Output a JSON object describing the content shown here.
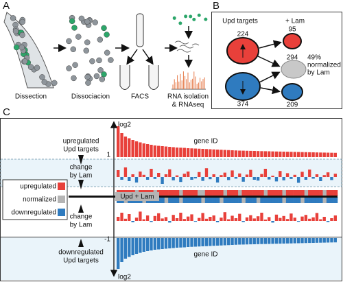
{
  "panel_a": {
    "label": "A",
    "steps": [
      "Dissection",
      "Dissociacion",
      "FACS",
      "RNA isolation"
    ],
    "step_note": "& RNAseq"
  },
  "panel_b": {
    "label": "B",
    "upd_targets": "Upd targets",
    "plus_lam": "+ Lam",
    "up_count": 224,
    "up_lam_count": 95,
    "normalized_count": 294,
    "normalized_percent": "49%",
    "normalized_note": [
      "normalized",
      "by Lam"
    ],
    "down_count": 374,
    "down_lam_count": 209
  },
  "panel_c": {
    "label": "C",
    "axis_label": "log2",
    "up_threshold": "1",
    "down_threshold": "-1",
    "gene_id": "gene ID",
    "up_label": [
      "upregulated",
      "Upd targets"
    ],
    "change_label": [
      "change",
      "by Lam"
    ],
    "down_label": [
      "downregulated",
      "Upd targets"
    ],
    "combined_label": "Upd + Lam",
    "legend": [
      {
        "name": "upregulated",
        "color": "#e8403a"
      },
      {
        "name": "normalized",
        "color": "#b4b4b4"
      },
      {
        "name": "downregulated",
        "color": "#2f7bbf"
      }
    ],
    "upregulated": [
      9,
      7,
      6,
      5.5,
      5,
      4.6,
      4.3,
      4,
      3.8,
      3.6,
      3.4,
      3.3,
      3.2,
      3.1,
      3,
      2.9,
      2.8,
      2.75,
      2.7,
      2.6,
      2.55,
      2.5,
      2.45,
      2.4,
      2.35,
      2.3,
      2.25,
      2.2,
      2.15,
      2.1,
      2.05,
      2,
      1.95,
      1.9,
      1.88,
      1.85,
      1.82,
      1.8,
      1.77,
      1.74,
      1.72,
      1.7,
      1.67,
      1.64,
      1.62,
      1.6,
      1.57,
      1.55,
      1.52,
      1.5,
      1.47,
      1.45,
      1.42,
      1.4,
      1.37,
      1.34,
      1.32,
      1.3,
      1.27,
      1.25
    ],
    "change_up": [
      2.5,
      -1,
      3.5,
      -1.5,
      1,
      -2,
      2,
      0.8,
      -1,
      3,
      -0.7,
      1.5,
      -2.5,
      1,
      2.8,
      -1.2,
      0.6,
      -1.8,
      1.2,
      2,
      -1,
      -0.5,
      1.8,
      -1.4,
      3.2,
      -0.8,
      1,
      -2,
      0.7,
      1.6,
      -1.1,
      2.4,
      -0.6,
      1.3,
      -1.7,
      0.9,
      2.6,
      -1,
      -1.3,
      1.1,
      3,
      -0.9,
      0.5,
      -1.6,
      2.2,
      -1.2,
      1.4,
      -0.7,
      0.8,
      -2.1,
      1.9,
      -1,
      2.7,
      -0.6,
      1,
      -1.5,
      0.7,
      1.7,
      -1.1,
      1.2
    ],
    "heat_up": [
      1,
      1,
      1,
      1,
      1,
      0,
      1,
      1,
      1,
      1,
      0,
      1,
      1,
      1,
      1,
      1,
      1,
      0,
      1,
      1,
      1,
      1,
      0,
      0,
      1,
      1,
      1,
      1,
      1,
      0,
      1,
      1,
      1,
      0,
      1,
      1,
      1,
      1,
      1,
      1,
      0,
      1,
      1,
      1,
      1,
      0,
      1,
      1,
      1,
      1,
      1,
      0,
      1,
      1,
      1,
      1,
      0,
      1,
      1,
      1
    ],
    "heat_down": [
      -1,
      -1,
      0,
      -1,
      -1,
      -1,
      -1,
      0,
      -1,
      -1,
      -1,
      -1,
      -1,
      0,
      -1,
      -1,
      -1,
      0,
      -1,
      -1,
      -1,
      -1,
      -1,
      0,
      -1,
      -1,
      -1,
      -1,
      0,
      -1,
      -1,
      -1,
      -1,
      -1,
      0,
      -1,
      -1,
      -1,
      0,
      -1,
      -1,
      -1,
      -1,
      -1,
      -1,
      0,
      -1,
      -1,
      -1,
      -1,
      0,
      -1,
      -1,
      -1,
      -1,
      -1,
      0,
      -1,
      -1,
      -1
    ],
    "change_down": [
      1.5,
      3,
      0.8,
      2.5,
      -0.5,
      1.2,
      3.4,
      0.6,
      2,
      -0.4,
      1.8,
      2.8,
      0.9,
      1.4,
      -0.6,
      2.2,
      1,
      3,
      0.7,
      1.6,
      2.4,
      -0.3,
      1.1,
      2.9,
      0.8,
      1.5,
      2,
      -0.5,
      1.2,
      3.2,
      0.6,
      1.9,
      1,
      2.6,
      -0.4,
      1.3,
      2.1,
      0.9,
      1.7,
      3,
      0.5,
      1.4,
      -0.6,
      2.3,
      1.1,
      1.8,
      0.7,
      2.7,
      1.2,
      -0.3,
      1.6,
      2.2,
      0.8,
      1.3,
      2.9,
      0.6,
      1.5,
      -0.4,
      1,
      2
    ],
    "downregulated": [
      -9,
      -7,
      -6,
      -5.5,
      -5,
      -4.6,
      -4.3,
      -4,
      -3.8,
      -3.6,
      -3.4,
      -3.3,
      -3.2,
      -3.1,
      -3,
      -2.9,
      -2.8,
      -2.75,
      -2.7,
      -2.6,
      -2.55,
      -2.5,
      -2.45,
      -2.4,
      -2.35,
      -2.3,
      -2.25,
      -2.2,
      -2.15,
      -2.1,
      -2.05,
      -2,
      -1.95,
      -1.9,
      -1.88,
      -1.85,
      -1.82,
      -1.8,
      -1.77,
      -1.74,
      -1.72,
      -1.7,
      -1.67,
      -1.64,
      -1.62,
      -1.6,
      -1.57,
      -1.55,
      -1.52,
      -1.5,
      -1.47,
      -1.45,
      -1.42,
      -1.4,
      -1.37,
      -1.34,
      -1.32,
      -1.3,
      -1.27,
      -1.25
    ]
  }
}
